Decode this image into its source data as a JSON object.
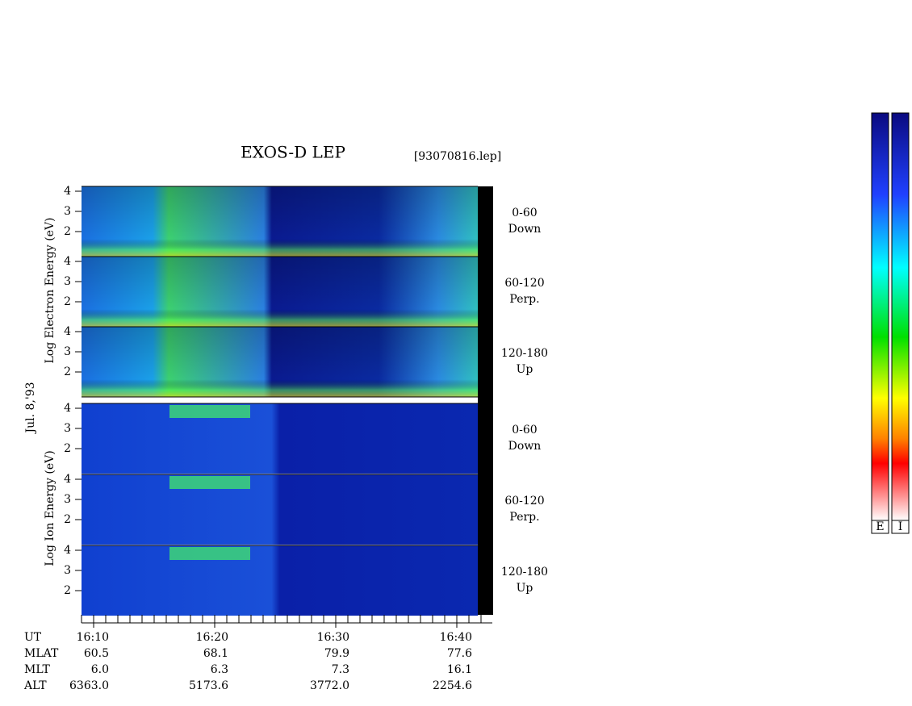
{
  "header": {
    "title": "EXOS-D LEP",
    "file": "[93070816.lep]",
    "date": "Jul. 8,'93"
  },
  "electron": {
    "axis_label": "Log  Electron  Energy  (eV)",
    "panels": [
      {
        "yticks": [
          2,
          3,
          4
        ],
        "label": [
          "0-60",
          "Down"
        ]
      },
      {
        "yticks": [
          2,
          3,
          4
        ],
        "label": [
          "60-120",
          "Perp."
        ]
      },
      {
        "yticks": [
          2,
          3,
          4
        ],
        "label": [
          "120-180",
          "Up"
        ]
      }
    ]
  },
  "ion": {
    "axis_label": "Log  Ion  Energy  (eV)",
    "panels": [
      {
        "yticks": [
          2,
          3,
          4
        ],
        "label": [
          "0-60",
          "Down"
        ]
      },
      {
        "yticks": [
          2,
          3,
          4
        ],
        "label": [
          "60-120",
          "Perp."
        ]
      },
      {
        "yticks": [
          2,
          3,
          4
        ],
        "label": [
          "120-180",
          "Up"
        ]
      }
    ]
  },
  "ephemeris": {
    "names": [
      "UT",
      "MLAT",
      "MLT",
      "ALT"
    ],
    "columns": [
      [
        "16:10",
        "60.5",
        "6.0",
        "6363.0"
      ],
      [
        "16:20",
        "68.1",
        "6.3",
        "5173.6"
      ],
      [
        "16:30",
        "79.9",
        "7.3",
        "3772.0"
      ],
      [
        "16:40",
        "77.6",
        "16.1",
        "2254.6"
      ]
    ]
  },
  "colorbars": [
    "E",
    "I"
  ]
}
